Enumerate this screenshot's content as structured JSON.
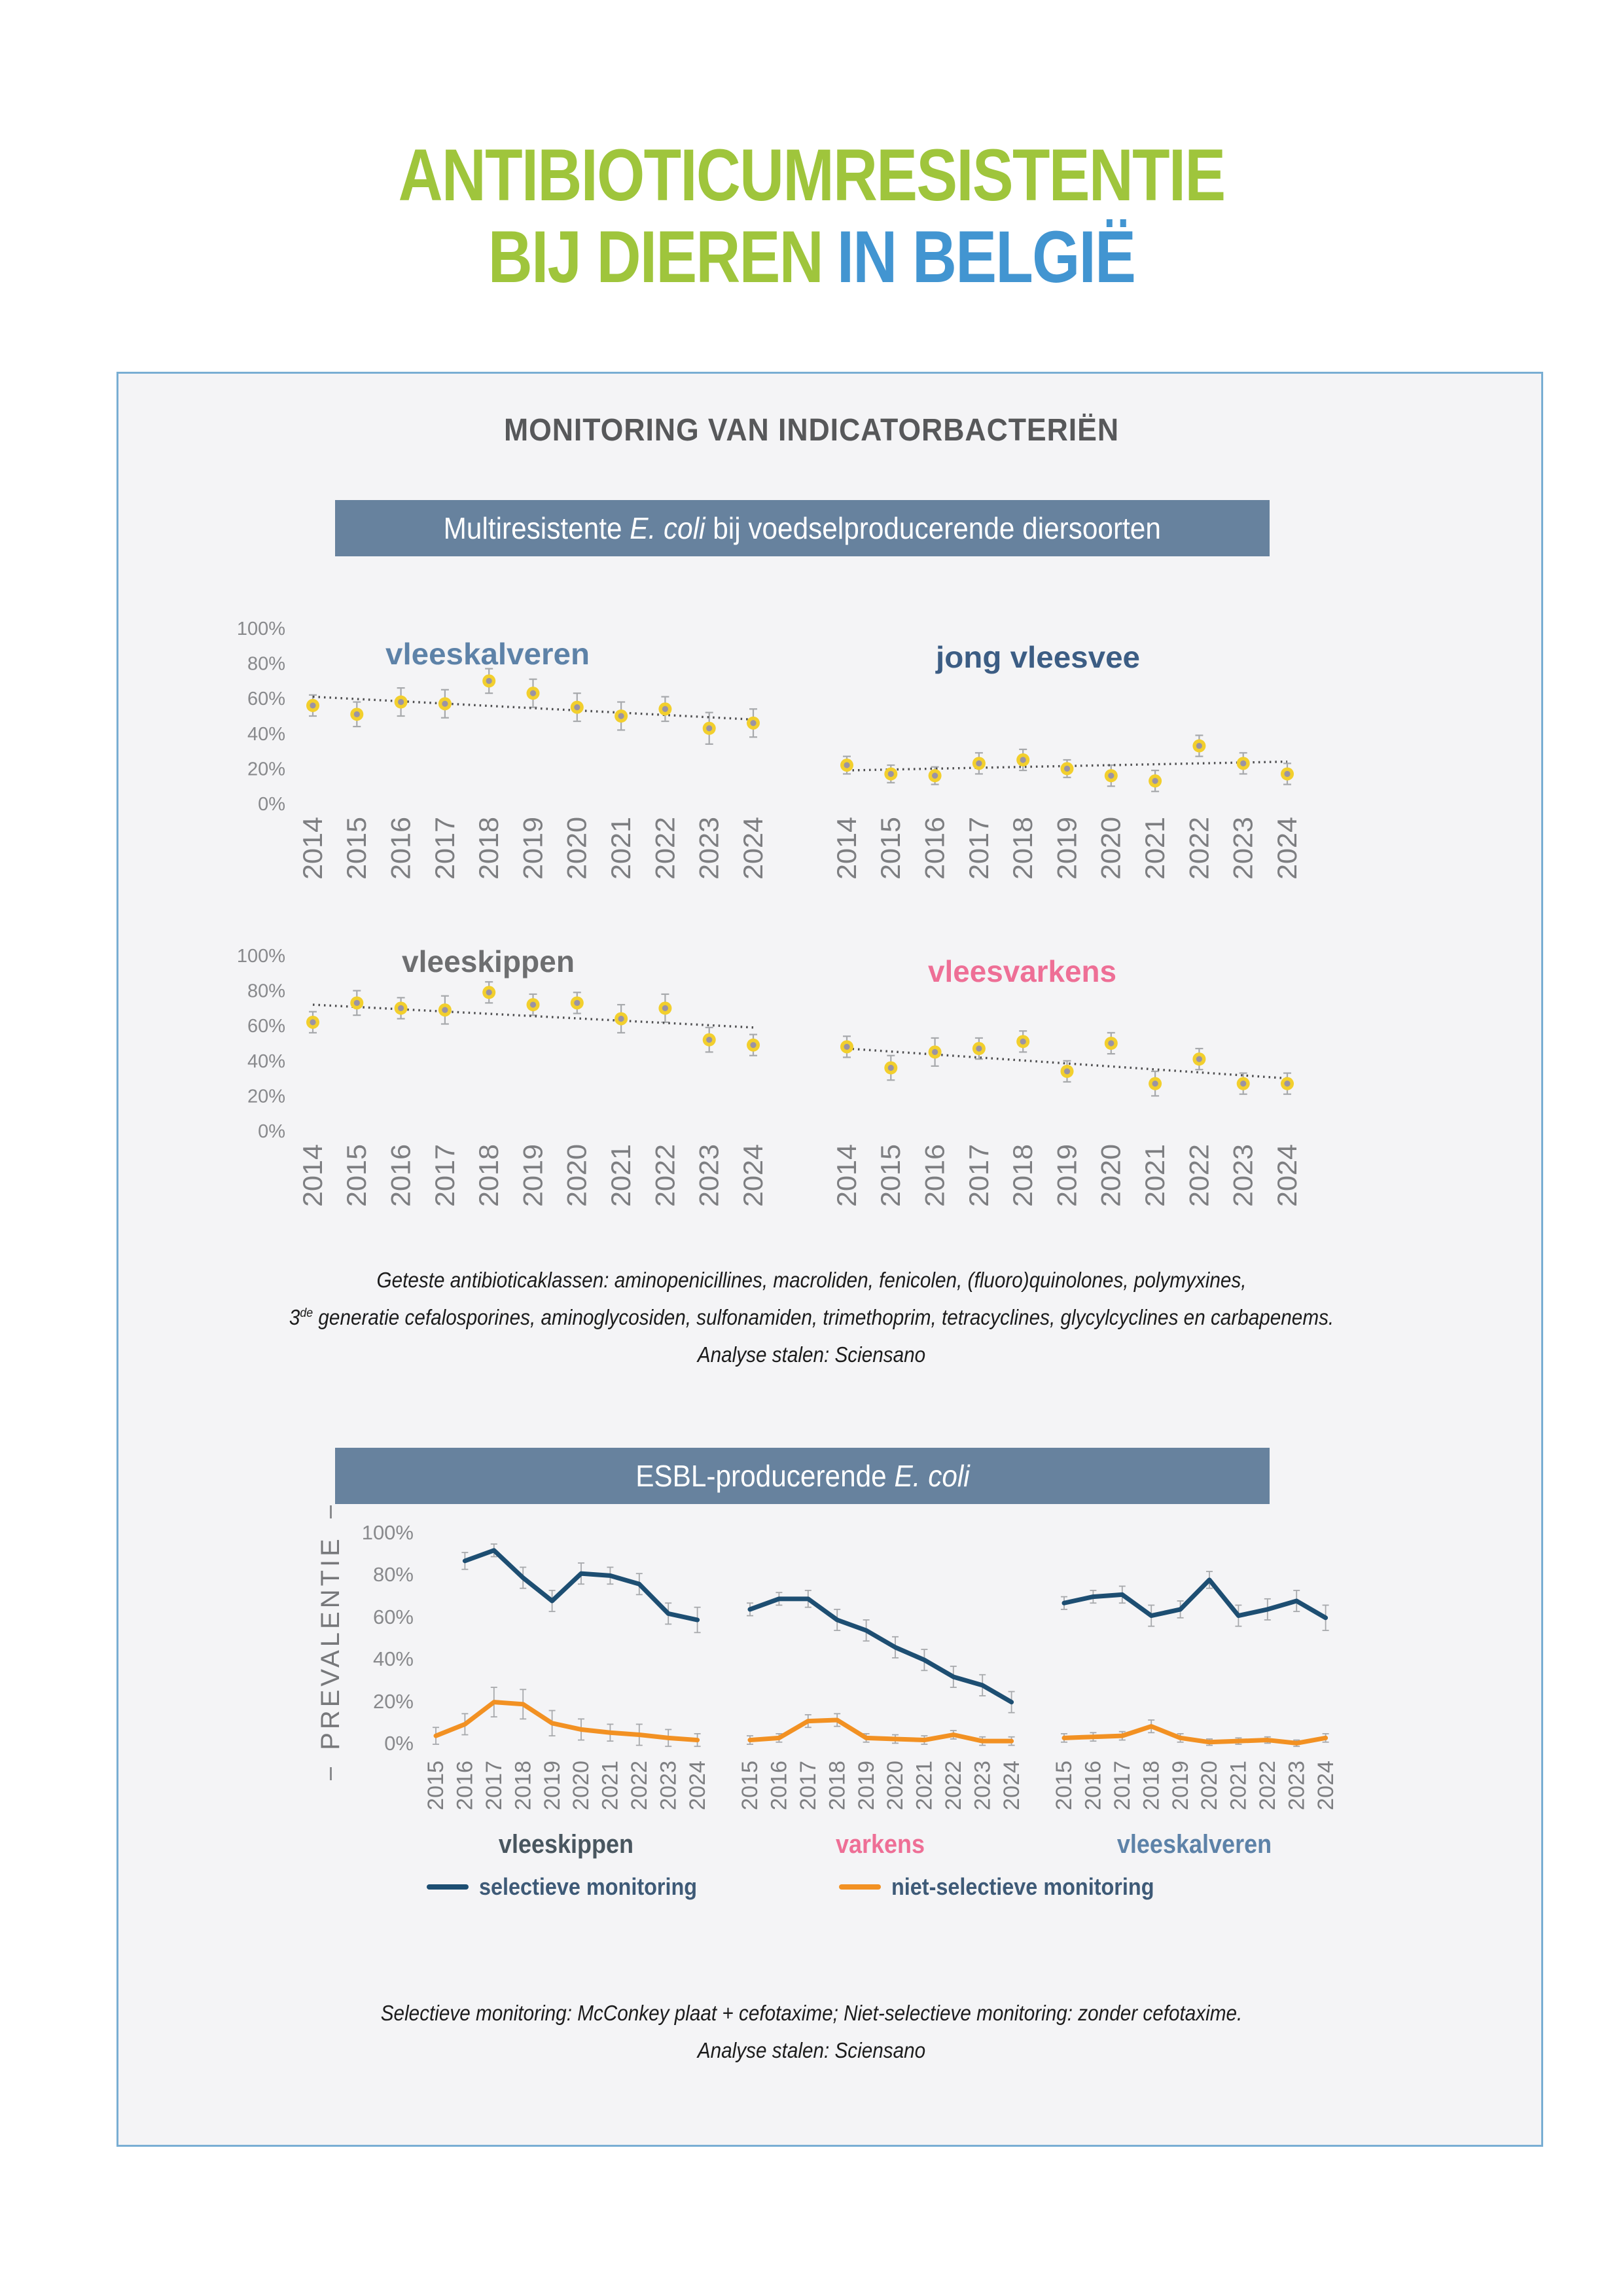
{
  "title": {
    "line1": "ANTIBIOTICUMRESISTENTIE",
    "line2_green": "BIJ DIEREN",
    "line2_blue": "IN BELGIË"
  },
  "panel": {
    "heading": "MONITORING VAN INDICATORBACTERIËN",
    "bar1": {
      "prefix": "Multiresistente ",
      "italic": "E. coli",
      "suffix": " bij voedselproducerende diersoorten"
    },
    "bar2": {
      "prefix": "ESBL-producerende ",
      "italic": "E. coli",
      "suffix": ""
    }
  },
  "footnote1": {
    "line1": "Geteste antibioticaklassen: aminopenicillines, macroliden, fenicolen, (fluoro)quinolones, polymyxines,",
    "line2_pre": "3",
    "line2_sup": "de",
    "line2_rest": " generatie cefalosporines, aminoglycosiden, sulfonamiden, trimethoprim, tetracyclines, glycylcyclines en carbapenems.",
    "line3": "Analyse stalen: Sciensano"
  },
  "footnote2": {
    "line1": "Selectieve monitoring: McConkey plaat + cefotaxime; Niet-selectieve monitoring: zonder cefotaxime.",
    "line2": "Analyse stalen: Sciensano"
  },
  "esbl": {
    "ylabel": "PREVALENTIE",
    "yticks": [
      "100%",
      "80%",
      "60%",
      "40%",
      "20%",
      "0%"
    ],
    "legend": [
      {
        "label": "selectieve monitoring",
        "color": "#1d4e72"
      },
      {
        "label": "niet-selectieve monitoring",
        "color": "#f29123"
      }
    ]
  },
  "colors": {
    "title_green": "#9fc53c",
    "title_blue": "#4295d1",
    "panel_bg": "#f4f4f6",
    "panel_border": "#79aed3",
    "bar_bg": "#67829e",
    "heading_gray": "#57585a",
    "point_yellow": "#f2cf2d",
    "point_core_gray": "#9a93a4",
    "errorbar_gray": "#a7a9ac",
    "trend_gray": "#4d4d4f",
    "axis_gray": "#88898c",
    "year_gray": "#7d7e81",
    "esbl_blue": "#1d4e72",
    "esbl_orange": "#f29123"
  },
  "chart_data": [
    {
      "type": "scatter",
      "title": "vleeskalveren",
      "title_color": "#5d82a8",
      "x": [
        2014,
        2015,
        2016,
        2017,
        2018,
        2019,
        2020,
        2021,
        2022,
        2023,
        2024
      ],
      "values": [
        56,
        51,
        58,
        57,
        70,
        63,
        55,
        50,
        54,
        43,
        46
      ],
      "errors": [
        6,
        7,
        8,
        8,
        7,
        8,
        8,
        8,
        7,
        9,
        8
      ],
      "trend": [
        61,
        48
      ],
      "y_axis": true,
      "ylabel": "",
      "xlabel": "",
      "ylim": [
        0,
        100
      ],
      "yticks": [
        "100%",
        "80%",
        "60%",
        "40%",
        "20%",
        "0%"
      ]
    },
    {
      "type": "scatter",
      "title": "jong vleesvee",
      "title_color": "#3c5d84",
      "x": [
        2014,
        2015,
        2016,
        2017,
        2018,
        2019,
        2020,
        2021,
        2022,
        2023,
        2024
      ],
      "values": [
        22,
        17,
        16,
        23,
        25,
        20,
        16,
        13,
        33,
        23,
        17
      ],
      "errors": [
        5,
        5,
        5,
        6,
        6,
        5,
        6,
        6,
        6,
        6,
        6
      ],
      "trend": [
        19,
        24
      ],
      "y_axis": false,
      "ylim": [
        0,
        100
      ]
    },
    {
      "type": "scatter",
      "title": "vleeskippen",
      "title_color": "#6d6e70",
      "x": [
        2014,
        2015,
        2016,
        2017,
        2018,
        2019,
        2020,
        2021,
        2022,
        2023,
        2024
      ],
      "values": [
        62,
        73,
        70,
        69,
        79,
        72,
        73,
        64,
        70,
        52,
        49
      ],
      "errors": [
        6,
        7,
        6,
        8,
        6,
        6,
        6,
        8,
        8,
        7,
        6
      ],
      "trend": [
        72,
        59
      ],
      "y_axis": true,
      "ylim": [
        0,
        100
      ],
      "yticks": [
        "100%",
        "80%",
        "60%",
        "40%",
        "20%",
        "0%"
      ]
    },
    {
      "type": "scatter",
      "title": "vleesvarkens",
      "title_color": "#ee6f96",
      "x": [
        2014,
        2015,
        2016,
        2017,
        2018,
        2019,
        2020,
        2021,
        2022,
        2023,
        2024
      ],
      "values": [
        48,
        36,
        45,
        47,
        51,
        34,
        50,
        27,
        41,
        27,
        27
      ],
      "errors": [
        6,
        7,
        8,
        6,
        6,
        6,
        6,
        7,
        6,
        6,
        6
      ],
      "trend": [
        47,
        30
      ],
      "y_axis": false,
      "ylim": [
        0,
        100
      ]
    },
    {
      "type": "line",
      "label": "vleeskippen",
      "label_color": "#49565f",
      "x": [
        2015,
        2016,
        2017,
        2018,
        2019,
        2020,
        2021,
        2022,
        2023,
        2024
      ],
      "ylim": [
        0,
        100
      ],
      "series": [
        {
          "name": "selectieve monitoring",
          "color": "#1d4e72",
          "values": [
            null,
            87,
            92,
            79,
            68,
            81,
            80,
            76,
            62,
            59
          ],
          "errors": [
            null,
            4,
            3,
            5,
            5,
            5,
            4,
            5,
            5,
            6
          ]
        },
        {
          "name": "niet-selectieve monitoring",
          "color": "#f29123",
          "values": [
            4,
            9.5,
            20,
            19,
            10,
            7,
            5.5,
            4.5,
            3,
            2
          ],
          "errors": [
            4,
            5,
            7,
            7,
            6,
            5,
            4,
            5,
            4,
            3
          ]
        }
      ]
    },
    {
      "type": "line",
      "label": "varkens",
      "label_color": "#ee6f96",
      "x": [
        2015,
        2016,
        2017,
        2018,
        2019,
        2020,
        2021,
        2022,
        2023,
        2024
      ],
      "ylim": [
        0,
        100
      ],
      "series": [
        {
          "name": "selectieve monitoring",
          "color": "#1d4e72",
          "values": [
            64,
            69,
            69,
            59,
            54,
            46,
            40,
            32,
            28,
            20
          ],
          "errors": [
            3,
            3,
            4,
            5,
            5,
            5,
            5,
            5,
            5,
            5
          ]
        },
        {
          "name": "niet-selectieve monitoring",
          "color": "#f29123",
          "values": [
            2,
            3,
            11,
            11.5,
            3,
            2.5,
            2,
            4.5,
            1.5,
            1.5
          ],
          "errors": [
            2,
            2,
            3,
            3,
            2,
            2,
            2,
            2,
            2,
            2
          ]
        }
      ]
    },
    {
      "type": "line",
      "label": "vleeskalveren",
      "label_color": "#5d82a8",
      "x": [
        2015,
        2016,
        2017,
        2018,
        2019,
        2020,
        2021,
        2022,
        2023,
        2024
      ],
      "ylim": [
        0,
        100
      ],
      "series": [
        {
          "name": "selectieve monitoring",
          "color": "#1d4e72",
          "values": [
            67,
            70,
            71,
            61,
            64,
            78,
            61,
            64,
            68,
            60
          ],
          "errors": [
            3,
            3,
            4,
            5,
            4,
            4,
            5,
            5,
            5,
            6
          ]
        },
        {
          "name": "niet-selectieve monitoring",
          "color": "#f29123",
          "values": [
            3,
            3.5,
            4,
            8.5,
            3,
            1,
            1.5,
            2,
            0.5,
            3
          ],
          "errors": [
            2,
            2,
            2,
            3,
            2,
            1.5,
            1.5,
            1.5,
            1.5,
            2
          ]
        }
      ]
    }
  ]
}
